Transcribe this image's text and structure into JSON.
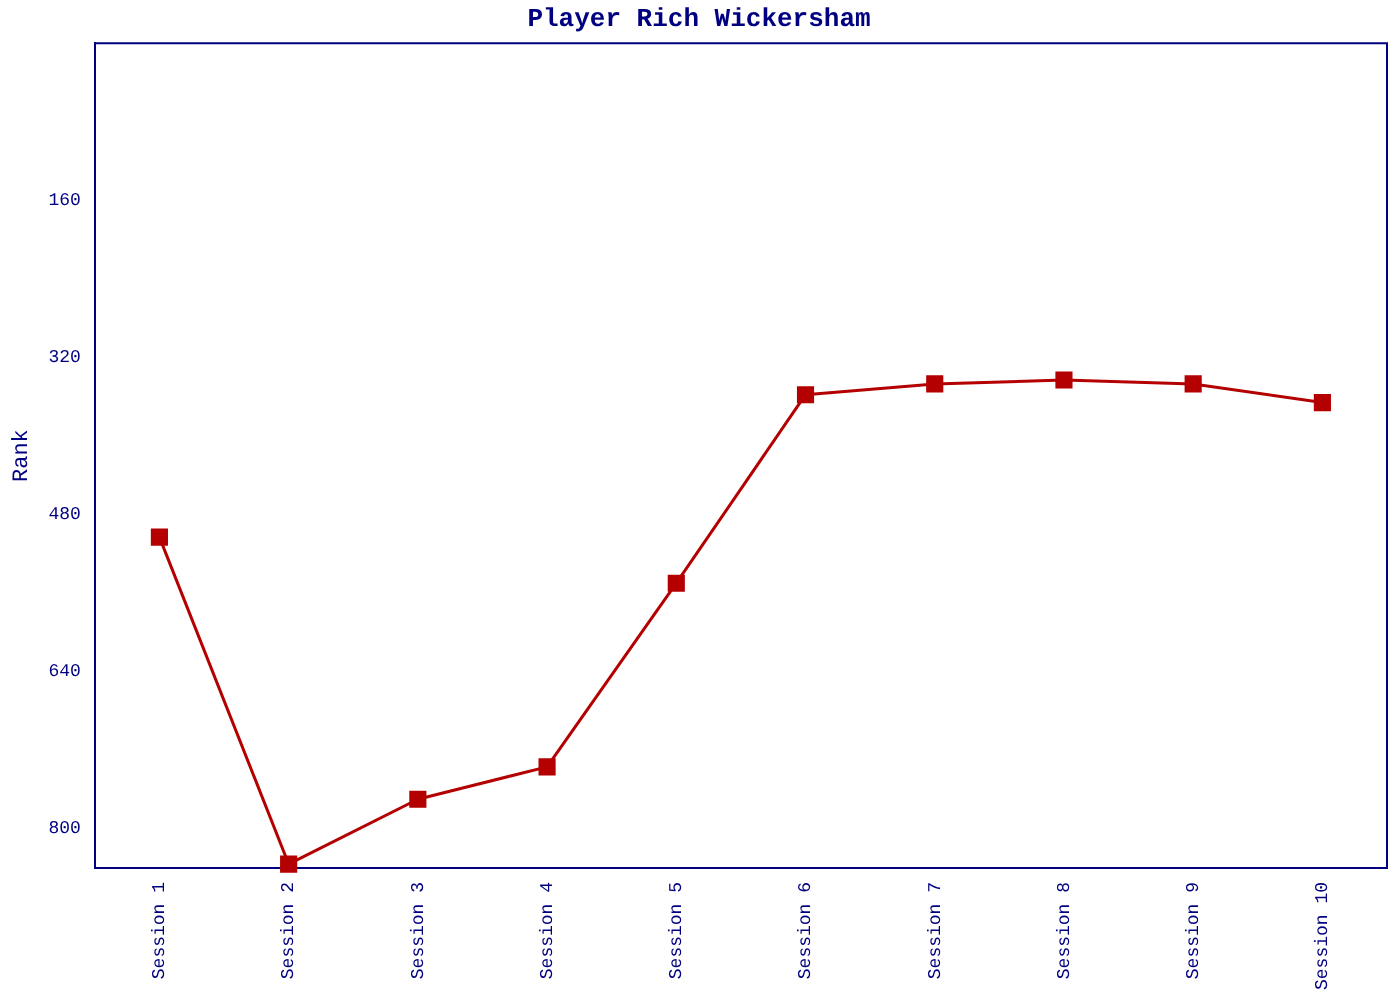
{
  "chart_data": {
    "type": "line",
    "title": "Player Rich Wickersham",
    "ylabel": "Rank",
    "categories": [
      "Session 1",
      "Session 2",
      "Session 3",
      "Session 4",
      "Session 5",
      "Session 6",
      "Session 7",
      "Session 8",
      "Session 9",
      "Session 10"
    ],
    "series": [
      {
        "color": "#b40000",
        "values": [
          503,
          836,
          770,
          737,
          550,
          358,
          347,
          343,
          347,
          366
        ]
      }
    ],
    "ylim": [
      840,
      0
    ],
    "yticks": [
      160,
      320,
      480,
      640,
      800
    ],
    "marker": "square",
    "line_style": "solid",
    "grid": false,
    "legend": false
  }
}
